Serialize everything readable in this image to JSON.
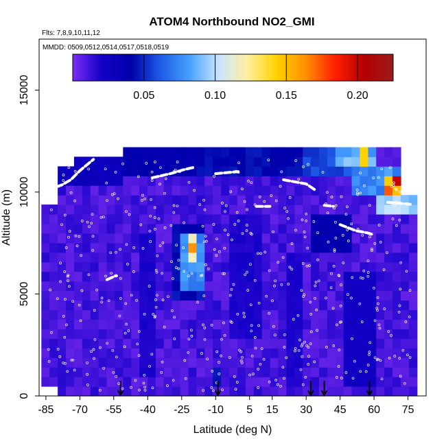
{
  "chart_data": {
    "type": "heatmap",
    "title": "ATOM4 Northbound NO2_GMI",
    "subtitle_flights": "Flts: 7,8,9,10,11,12",
    "subtitle_dates": "MMDD: 0509,0512,0514,0517,0518,0519",
    "xlabel": "Latitude (deg N)",
    "ylabel": "Altitude (m)",
    "xlim": [
      -88,
      83
    ],
    "ylim": [
      0,
      17500
    ],
    "xticks": [
      -85,
      -70,
      -55,
      -40,
      -25,
      -10,
      5,
      15,
      30,
      45,
      60,
      75
    ],
    "yticks": [
      0,
      5000,
      10000,
      15000
    ],
    "colorbar": {
      "range": [
        0.0,
        0.225
      ],
      "ticks": [
        0.05,
        0.1,
        0.15,
        0.2
      ],
      "tick_labels": [
        "0.05",
        "0.10",
        "0.15",
        "0.20"
      ],
      "colors": [
        "#7c2cf0",
        "#1400c8",
        "#0000aa",
        "#1e5ae6",
        "#46a0ff",
        "#c8e6ff",
        "#fff0a0",
        "#ffd200",
        "#ff9000",
        "#ff2000",
        "#b40000",
        "#9c1c1c"
      ]
    },
    "profile_arrows_lat": [
      -52,
      -9,
      32,
      38,
      58
    ],
    "background_no2": 0.005,
    "regions": [
      {
        "lat": [
          -87,
          -78
        ],
        "alt": [
          500,
          9000
        ],
        "no2": 0.005
      },
      {
        "lat": [
          -78,
          -50
        ],
        "alt": [
          10300,
          12100
        ],
        "no2": 0.03
      },
      {
        "lat": [
          -50,
          -20
        ],
        "alt": [
          10800,
          12000
        ],
        "no2": 0.04
      },
      {
        "lat": [
          -20,
          30
        ],
        "alt": [
          11000,
          12000
        ],
        "no2": 0.045
      },
      {
        "lat": [
          30,
          50
        ],
        "alt": [
          10800,
          12000
        ],
        "no2": 0.06
      },
      {
        "lat": [
          44,
          60
        ],
        "alt": [
          11400,
          12100
        ],
        "no2": 0.09
      },
      {
        "lat": [
          53,
          58
        ],
        "alt": [
          11300,
          12000
        ],
        "no2": 0.15
      },
      {
        "lat": [
          50,
          70
        ],
        "alt": [
          10000,
          11200
        ],
        "no2": 0.08
      },
      {
        "lat": [
          63,
          72
        ],
        "alt": [
          10000,
          10800
        ],
        "no2": 0.17
      },
      {
        "lat": [
          68,
          72
        ],
        "alt": [
          10100,
          10600
        ],
        "no2": 0.2
      },
      {
        "lat": [
          62,
          78
        ],
        "alt": [
          8800,
          10000
        ],
        "no2": 0.1
      },
      {
        "lat": [
          70,
          80
        ],
        "alt": [
          9000,
          10000
        ],
        "no2": 0.09
      },
      {
        "lat": [
          -28,
          -14
        ],
        "alt": [
          4600,
          8400
        ],
        "no2": 0.045
      },
      {
        "lat": [
          -25,
          -16
        ],
        "alt": [
          5200,
          8000
        ],
        "no2": 0.08
      },
      {
        "lat": [
          -23,
          -18
        ],
        "alt": [
          6500,
          7800
        ],
        "no2": 0.12
      },
      {
        "lat": [
          -21,
          -19
        ],
        "alt": [
          7200,
          7500
        ],
        "no2": 0.16
      },
      {
        "lat": [
          32,
          50
        ],
        "alt": [
          7000,
          9000
        ],
        "no2": 0.04
      },
      {
        "lat": [
          -12,
          -6
        ],
        "alt": [
          700,
          1400
        ],
        "no2": 0.05
      },
      {
        "lat": [
          28,
          30
        ],
        "alt": [
          12000,
          12600
        ],
        "no2": 0.06
      },
      {
        "lat": [
          -5,
          10
        ],
        "alt": [
          3000,
          9000
        ],
        "no2": 0.02
      },
      {
        "lat": [
          -45,
          -35
        ],
        "alt": [
          1000,
          8000
        ],
        "no2": 0.02
      },
      {
        "lat": [
          20,
          30
        ],
        "alt": [
          500,
          7000
        ],
        "no2": 0.02
      },
      {
        "lat": [
          48,
          60
        ],
        "alt": [
          500,
          6000
        ],
        "no2": 0.025
      }
    ]
  }
}
